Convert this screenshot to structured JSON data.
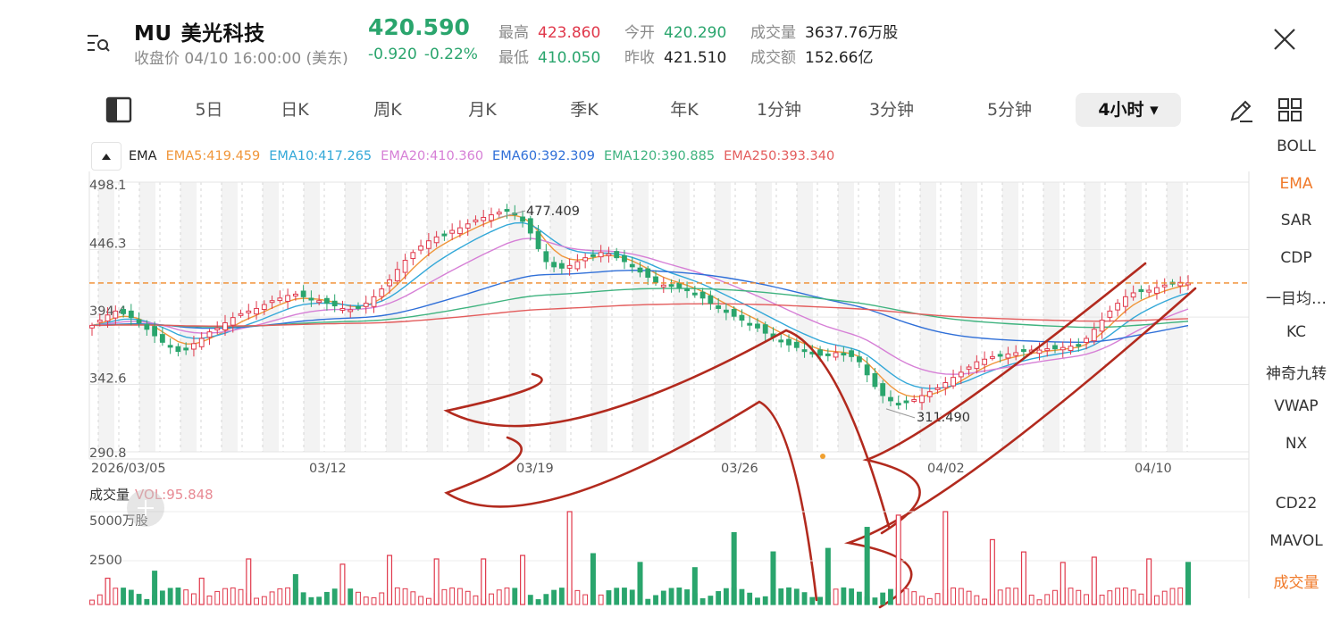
{
  "header": {
    "symbol": "MU",
    "name": "美光科技",
    "status": "收盘价 04/10 16:00:00 (美东)",
    "price": "420.590",
    "change": "-0.920",
    "change_pct": "-0.22%",
    "stats": [
      {
        "key": "最高",
        "value": "423.860",
        "tone": "red"
      },
      {
        "key": "最低",
        "value": "410.050",
        "tone": "green"
      },
      {
        "key": "今开",
        "value": "420.290",
        "tone": "green"
      },
      {
        "key": "昨收",
        "value": "421.510",
        "tone": "dark"
      },
      {
        "key": "成交量",
        "value": "3637.76万股",
        "tone": "dark"
      },
      {
        "key": "成交额",
        "value": "152.66亿",
        "tone": "dark"
      }
    ]
  },
  "tabs": [
    "5日",
    "日K",
    "周K",
    "月K",
    "季K",
    "年K",
    "1分钟",
    "3分钟",
    "5分钟",
    "4小时"
  ],
  "active_tab": "4小时",
  "legend": {
    "name": "EMA",
    "items": [
      {
        "label": "EMA5:419.459",
        "color": "#f0963a"
      },
      {
        "label": "EMA10:417.265",
        "color": "#33a8d8"
      },
      {
        "label": "EMA20:410.360",
        "color": "#d67fd6"
      },
      {
        "label": "EMA60:392.309",
        "color": "#2f6fd8"
      },
      {
        "label": "EMA120:390.885",
        "color": "#3fb37f"
      },
      {
        "label": "EMA250:393.340",
        "color": "#e35c5c"
      }
    ]
  },
  "indicators": [
    "BOLL",
    "EMA",
    "SAR",
    "CDP",
    "一目均…",
    "KC",
    "神奇九转",
    "VWAP",
    "NX",
    "CD22",
    "MAVOL",
    "成交量"
  ],
  "active_indicators": [
    "EMA",
    "成交量"
  ],
  "volume": {
    "label": "成交量",
    "value": "VOL:95.848",
    "ticks": [
      "5000万股",
      "2500"
    ]
  },
  "colors": {
    "up": "#e0384b",
    "down": "#2aa56d",
    "last_price_line": "#f08a2a",
    "annotation": "#b22a1e"
  },
  "chart_data": {
    "type": "candlestick",
    "ylim": [
      290.8,
      498.1
    ],
    "y_ticks": [
      "498.1",
      "446.3",
      "394.4",
      "342.6",
      "290.8"
    ],
    "x_ticks": [
      "2026/03/05",
      "03/12",
      "03/19",
      "03/26",
      "04/02",
      "04/10"
    ],
    "annotations": [
      {
        "label": "477.409",
        "value": 477.409
      },
      {
        "label": "311.490",
        "value": 311.49
      }
    ],
    "last_price": 420.59,
    "close": [
      388,
      392,
      396,
      399,
      397,
      394,
      390,
      385,
      380,
      375,
      372,
      368,
      370,
      374,
      378,
      383,
      386,
      390,
      394,
      397,
      399,
      401,
      404,
      407,
      409,
      411,
      412,
      410,
      408,
      407,
      405,
      403,
      401,
      400,
      402,
      405,
      410,
      416,
      423,
      431,
      438,
      444,
      449,
      453,
      456,
      458,
      461,
      463,
      466,
      469,
      471,
      473,
      475,
      476,
      473,
      468,
      459,
      447,
      437,
      433,
      432,
      434,
      437,
      440,
      442,
      444,
      443,
      440,
      437,
      433,
      429,
      425,
      421,
      419,
      418,
      417,
      415,
      412,
      409,
      405,
      401,
      398,
      395,
      392,
      389,
      386,
      382,
      379,
      376,
      373,
      371,
      369,
      367,
      365,
      366,
      367,
      366,
      364,
      360,
      350,
      341,
      334,
      330,
      328,
      329,
      331,
      334,
      337,
      340,
      344,
      348,
      352,
      356,
      360,
      362,
      364,
      365,
      366,
      367,
      368,
      369,
      369,
      370,
      370,
      371,
      372,
      373,
      378,
      385,
      392,
      399,
      405,
      410,
      413,
      414,
      415,
      417,
      419,
      420,
      421,
      420.59
    ],
    "volume_major": [
      {
        "i": 2,
        "v": 1500,
        "up": true
      },
      {
        "i": 8,
        "v": 1900,
        "up": false
      },
      {
        "i": 14,
        "v": 1500,
        "up": true
      },
      {
        "i": 20,
        "v": 2600,
        "up": true
      },
      {
        "i": 26,
        "v": 1700,
        "up": false
      },
      {
        "i": 32,
        "v": 2300,
        "up": true
      },
      {
        "i": 38,
        "v": 2800,
        "up": true
      },
      {
        "i": 44,
        "v": 2600,
        "up": true
      },
      {
        "i": 50,
        "v": 2600,
        "up": true
      },
      {
        "i": 55,
        "v": 2800,
        "up": true
      },
      {
        "i": 61,
        "v": 5300,
        "up": true
      },
      {
        "i": 64,
        "v": 2900,
        "up": false
      },
      {
        "i": 70,
        "v": 2400,
        "up": false
      },
      {
        "i": 77,
        "v": 2100,
        "up": false
      },
      {
        "i": 82,
        "v": 4100,
        "up": false
      },
      {
        "i": 87,
        "v": 3000,
        "up": false
      },
      {
        "i": 94,
        "v": 3200,
        "up": false
      },
      {
        "i": 99,
        "v": 4400,
        "up": false
      },
      {
        "i": 103,
        "v": 5100,
        "up": true
      },
      {
        "i": 109,
        "v": 5300,
        "up": true
      },
      {
        "i": 115,
        "v": 3700,
        "up": true
      },
      {
        "i": 119,
        "v": 3000,
        "up": true
      },
      {
        "i": 124,
        "v": 2400,
        "up": true
      },
      {
        "i": 128,
        "v": 2700,
        "up": true
      },
      {
        "i": 135,
        "v": 2600,
        "up": true
      },
      {
        "i": 140,
        "v": 2400,
        "up": false
      }
    ]
  }
}
